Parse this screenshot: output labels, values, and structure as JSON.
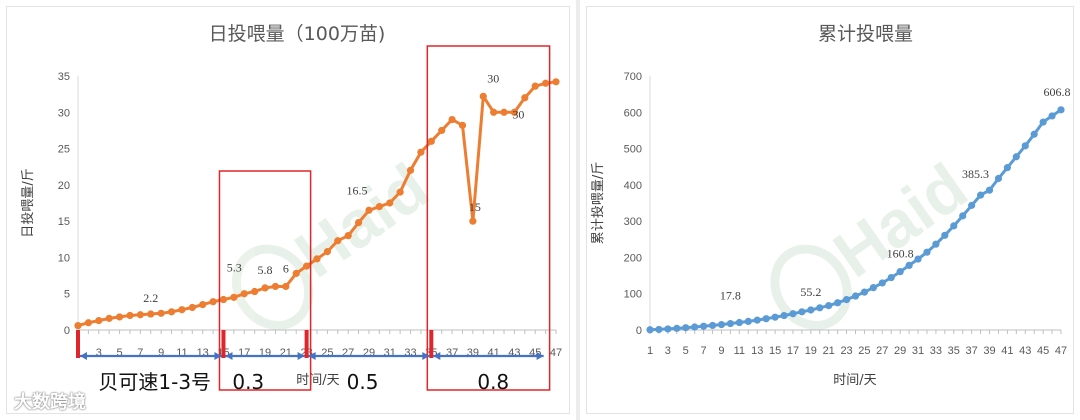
{
  "chart_data": [
    {
      "type": "line",
      "title": "日投喂量（100万苗)",
      "ylabel": "日投喂量/斤",
      "xlabel": "时间/天",
      "ylim": [
        0,
        35
      ],
      "yticks": [
        0,
        5,
        10,
        15,
        20,
        25,
        30,
        35
      ],
      "xticks": [
        3,
        5,
        7,
        9,
        11,
        13,
        15,
        17,
        19,
        21,
        23,
        25,
        27,
        29,
        31,
        33,
        35,
        37,
        39,
        41,
        43,
        45,
        47
      ],
      "x": [
        1,
        2,
        3,
        4,
        5,
        6,
        7,
        8,
        9,
        10,
        11,
        12,
        13,
        14,
        15,
        16,
        17,
        18,
        19,
        20,
        21,
        22,
        23,
        24,
        25,
        26,
        27,
        28,
        29,
        30,
        31,
        32,
        33,
        34,
        35,
        36,
        37,
        38,
        39,
        40,
        41,
        42,
        43,
        44,
        45,
        46,
        47
      ],
      "values": [
        0.6,
        1.0,
        1.3,
        1.6,
        1.8,
        2.0,
        2.1,
        2.2,
        2.3,
        2.5,
        2.8,
        3.1,
        3.5,
        3.9,
        4.2,
        4.5,
        5.0,
        5.3,
        5.8,
        6.0,
        6.0,
        7.8,
        8.8,
        9.8,
        10.8,
        12.3,
        13.0,
        14.8,
        16.5,
        17.0,
        17.5,
        19.0,
        22.0,
        24.5,
        26.0,
        27.5,
        29.0,
        28.2,
        15.0,
        32.2,
        30.0,
        30.0,
        30.0,
        32.0,
        33.6,
        34.0,
        34.2
      ],
      "data_labels": [
        {
          "x": 8,
          "text": "2.2"
        },
        {
          "x": 17,
          "text": "5.3"
        },
        {
          "x": 19,
          "text": "5.8"
        },
        {
          "x": 21,
          "text": "6"
        },
        {
          "x": 29,
          "text": "16.5"
        },
        {
          "x": 39,
          "text": "15"
        },
        {
          "x": 40,
          "text": "30"
        },
        {
          "x": 43,
          "text": "30"
        }
      ],
      "color": "#ED7D31",
      "phases": [
        {
          "label": "贝可速1-3号",
          "from_day": 1,
          "to_day": 15
        },
        {
          "label": "0.3",
          "from_day": 15,
          "to_day": 23
        },
        {
          "label": "0.5",
          "from_day": 23,
          "to_day": 35
        },
        {
          "label": "0.8",
          "from_day": 35,
          "to_day": 46
        }
      ],
      "highlight_ranges": [
        [
          15,
          23
        ],
        [
          35,
          46
        ]
      ]
    },
    {
      "type": "line",
      "title": "累计投喂量",
      "ylabel": "累计投喂量/斤",
      "xlabel": "时间/天",
      "ylim": [
        0,
        700
      ],
      "yticks": [
        0,
        100,
        200,
        300,
        400,
        500,
        600,
        700
      ],
      "xticks": [
        1,
        3,
        5,
        7,
        9,
        11,
        13,
        15,
        17,
        19,
        21,
        23,
        25,
        27,
        29,
        31,
        33,
        35,
        37,
        39,
        41,
        43,
        45,
        47
      ],
      "x": [
        1,
        2,
        3,
        4,
        5,
        6,
        7,
        8,
        9,
        10,
        11,
        12,
        13,
        14,
        15,
        16,
        17,
        18,
        19,
        20,
        21,
        22,
        23,
        24,
        25,
        26,
        27,
        28,
        29,
        30,
        31,
        32,
        33,
        34,
        35,
        36,
        37,
        38,
        39,
        40,
        41,
        42,
        43,
        44,
        45,
        46,
        47
      ],
      "values": [
        0.6,
        1.6,
        2.9,
        4.5,
        6.3,
        8.3,
        10.4,
        12.6,
        14.9,
        17.8,
        20.6,
        23.7,
        27.2,
        31.1,
        35.3,
        39.8,
        44.8,
        50.1,
        55.2,
        61.2,
        67.2,
        75.0,
        83.8,
        93.6,
        104.4,
        116.7,
        129.7,
        144.5,
        160.8,
        178.0,
        195.5,
        214.5,
        236.5,
        261.0,
        287.0,
        314.5,
        343.5,
        371.7,
        385.3,
        417.5,
        447.5,
        477.5,
        507.5,
        539.5,
        573.1,
        590.0,
        606.8
      ],
      "data_labels": [
        {
          "x": 10,
          "text": "17.8"
        },
        {
          "x": 19,
          "text": "55.2"
        },
        {
          "x": 29,
          "text": "160.8"
        },
        {
          "x": 39,
          "text": "385.3"
        },
        {
          "x": 47,
          "text": "606.8"
        }
      ],
      "color": "#5B9BD5"
    }
  ],
  "watermark": {
    "logo_text": "Haid",
    "caption": "大数跨境"
  }
}
